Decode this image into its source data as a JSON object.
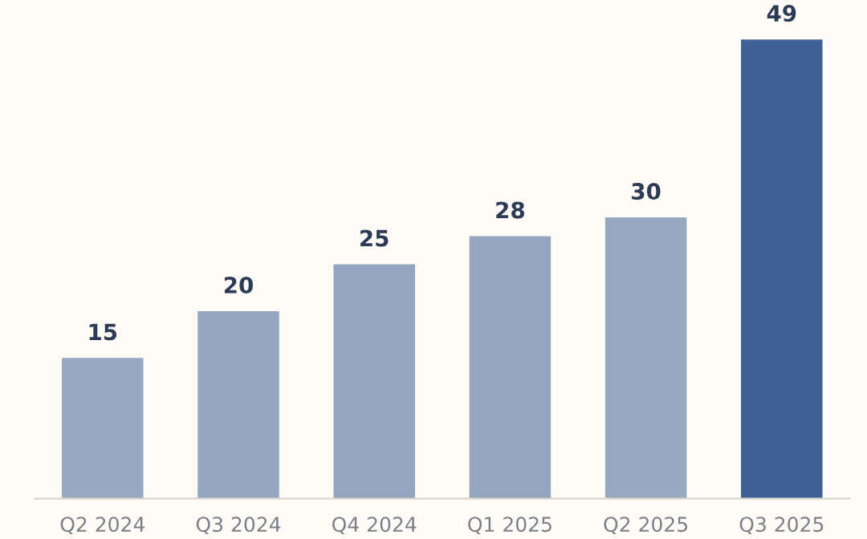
{
  "chart_data": {
    "type": "bar",
    "categories": [
      "Q2 2024",
      "Q3 2024",
      "Q4 2024",
      "Q1 2025",
      "Q2 2025",
      "Q3 2025"
    ],
    "values": [
      15,
      20,
      25,
      28,
      30,
      49
    ],
    "colors": [
      "#98a9c2",
      "#94a6c0",
      "#93a5bf",
      "#93a5bf",
      "#96a7c0",
      "#3d6293"
    ],
    "data_labels": true
  }
}
